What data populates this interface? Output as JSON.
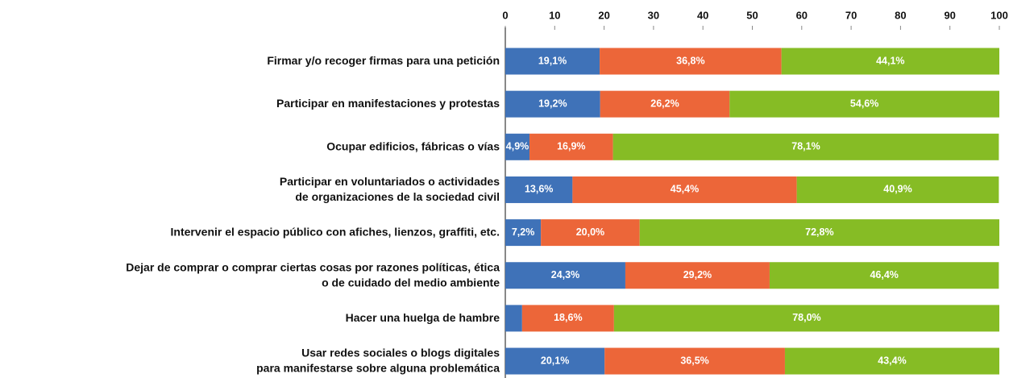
{
  "chart_data": {
    "type": "stacked-bar-horizontal",
    "categories": [
      [
        "Firmar y/o recoger firmas para una petición"
      ],
      [
        "Participar en manifestaciones y protestas"
      ],
      [
        "Ocupar edificios, fábricas o vías"
      ],
      [
        "Participar en voluntariados o actividades",
        "de organizaciones de la sociedad civil"
      ],
      [
        "Intervenir el espacio público con afiches, lienzos, graffiti, etc."
      ],
      [
        "Dejar de comprar o comprar ciertas cosas por razones políticas, ética",
        "o de cuidado del medio ambiente"
      ],
      [
        "Hacer una huelga de hambre"
      ],
      [
        "Usar redes sociales o blogs digitales",
        "para manifestarse sobre alguna problemática"
      ]
    ],
    "series": [
      {
        "color": "#3f72b8",
        "values": [
          19.1,
          19.2,
          4.9,
          13.6,
          7.2,
          24.3,
          3.4,
          20.1
        ],
        "value_labels": [
          "19,1%",
          "19,2%",
          "4,9%",
          "13,6%",
          "7,2%",
          "24,3%",
          null,
          "20,1%"
        ]
      },
      {
        "color": "#ec6639",
        "values": [
          36.8,
          26.2,
          16.9,
          45.4,
          20.0,
          29.2,
          18.6,
          36.5
        ],
        "value_labels": [
          "36,8%",
          "26,2%",
          "16,9%",
          "45,4%",
          "20,0%",
          "29,2%",
          "18,6%",
          "36,5%"
        ]
      },
      {
        "color": "#86bc25",
        "values": [
          44.1,
          54.6,
          78.1,
          40.9,
          72.8,
          46.4,
          78.0,
          43.4
        ],
        "value_labels": [
          "44,1%",
          "54,6%",
          "78,1%",
          "40,9%",
          "72,8%",
          "46,4%",
          "78,0%",
          "43,4%"
        ]
      }
    ],
    "xlim": [
      0,
      100
    ],
    "xticks": [
      0,
      10,
      20,
      30,
      40,
      50,
      60,
      70,
      80,
      90,
      100
    ]
  }
}
